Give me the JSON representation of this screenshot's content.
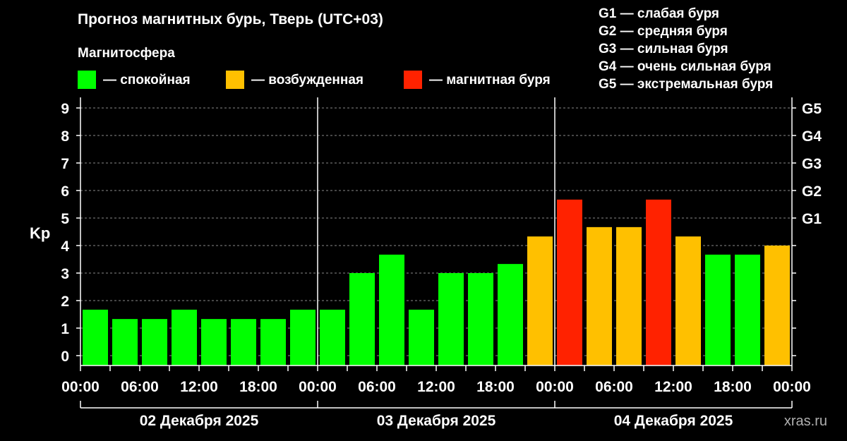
{
  "title": "Прогноз магнитных бурь, Тверь (UTC+03)",
  "legend_heading": "Магнитосфера",
  "legend": [
    {
      "label": "— спокойная",
      "color": "#00ff00"
    },
    {
      "label": "— возбужденная",
      "color": "#ffc000"
    },
    {
      "label": "— магнитная буря",
      "color": "#ff2200"
    }
  ],
  "g_scale": [
    "G1 — слабая буря",
    "G2 — средняя буря",
    "G3 — сильная буря",
    "G4 — очень сильная буря",
    "G5 — экстремальная буря"
  ],
  "watermark": "xras.ru",
  "chart_data": {
    "type": "bar",
    "ylabel": "Kp",
    "ylim": [
      0,
      9
    ],
    "yticks": [
      0,
      1,
      2,
      3,
      4,
      5,
      6,
      7,
      8,
      9
    ],
    "right_ticks": [
      {
        "value": 5,
        "label": "G1"
      },
      {
        "value": 6,
        "label": "G2"
      },
      {
        "value": 7,
        "label": "G3"
      },
      {
        "value": 8,
        "label": "G4"
      },
      {
        "value": 9,
        "label": "G5"
      }
    ],
    "x_tick_labels": [
      "00:00",
      "06:00",
      "12:00",
      "18:00",
      "00:00",
      "06:00",
      "12:00",
      "18:00",
      "00:00",
      "06:00",
      "12:00",
      "18:00",
      "00:00"
    ],
    "days": [
      "02 Декабря 2025",
      "03 Декабря 2025",
      "04 Декабря 2025"
    ],
    "interval_hours": 3,
    "values": [
      1.67,
      1.33,
      1.33,
      1.67,
      1.33,
      1.33,
      1.33,
      1.67,
      1.67,
      3.0,
      3.67,
      1.67,
      3.0,
      3.0,
      3.33,
      4.33,
      5.67,
      4.67,
      4.67,
      5.67,
      4.33,
      3.67,
      3.67,
      4.0
    ],
    "colors": [
      "#00ff00",
      "#00ff00",
      "#00ff00",
      "#00ff00",
      "#00ff00",
      "#00ff00",
      "#00ff00",
      "#00ff00",
      "#00ff00",
      "#00ff00",
      "#00ff00",
      "#00ff00",
      "#00ff00",
      "#00ff00",
      "#00ff00",
      "#ffc000",
      "#ff2200",
      "#ffc000",
      "#ffc000",
      "#ff2200",
      "#ffc000",
      "#00ff00",
      "#00ff00",
      "#ffc000"
    ],
    "grid": "dashed horizontal"
  }
}
